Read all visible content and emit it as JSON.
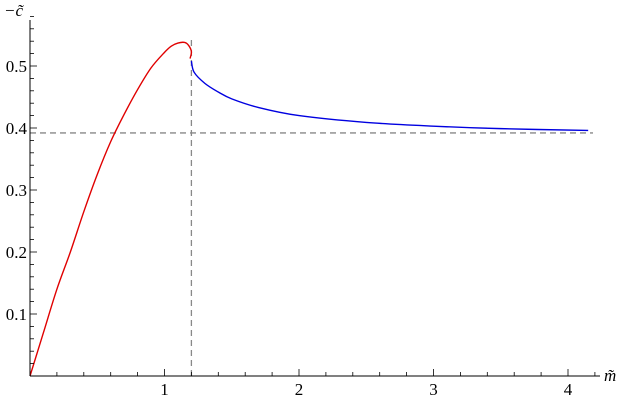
{
  "chart_data": {
    "type": "line",
    "title": "",
    "xlabel": "m̃",
    "ylabel": "−c̃",
    "xlim": [
      0,
      4.2
    ],
    "ylim": [
      0,
      0.58
    ],
    "x_ticks": [
      {
        "value": 1,
        "label": "1"
      },
      {
        "value": 2,
        "label": "2"
      },
      {
        "value": 3,
        "label": "3"
      },
      {
        "value": 4,
        "label": "4"
      }
    ],
    "y_ticks": [
      {
        "value": 0.1,
        "label": "0.1"
      },
      {
        "value": 0.2,
        "label": "0.2"
      },
      {
        "value": 0.3,
        "label": "0.3"
      },
      {
        "value": 0.4,
        "label": "0.4"
      },
      {
        "value": 0.5,
        "label": "0.5"
      }
    ],
    "reference_lines": {
      "vertical_x": 1.2,
      "horizontal_y": 0.392,
      "color": "#888888",
      "style": "dashed"
    },
    "series": [
      {
        "color": "#e00000",
        "points": [
          [
            0,
            0
          ],
          [
            0.1,
            0.07
          ],
          [
            0.2,
            0.14
          ],
          [
            0.3,
            0.2
          ],
          [
            0.4,
            0.265
          ],
          [
            0.5,
            0.325
          ],
          [
            0.6,
            0.378
          ],
          [
            0.7,
            0.422
          ],
          [
            0.8,
            0.462
          ],
          [
            0.9,
            0.497
          ],
          [
            1.0,
            0.522
          ],
          [
            1.05,
            0.532
          ],
          [
            1.1,
            0.537
          ],
          [
            1.15,
            0.538
          ],
          [
            1.18,
            0.533
          ],
          [
            1.2,
            0.523
          ],
          [
            1.19,
            0.512
          ]
        ]
      },
      {
        "color": "#0000e0",
        "points": [
          [
            1.2,
            0.508
          ],
          [
            1.22,
            0.49
          ],
          [
            1.3,
            0.472
          ],
          [
            1.4,
            0.458
          ],
          [
            1.5,
            0.447
          ],
          [
            1.7,
            0.433
          ],
          [
            2.0,
            0.42
          ],
          [
            2.5,
            0.409
          ],
          [
            3.0,
            0.403
          ],
          [
            3.5,
            0.399
          ],
          [
            4.15,
            0.396
          ]
        ]
      }
    ]
  }
}
